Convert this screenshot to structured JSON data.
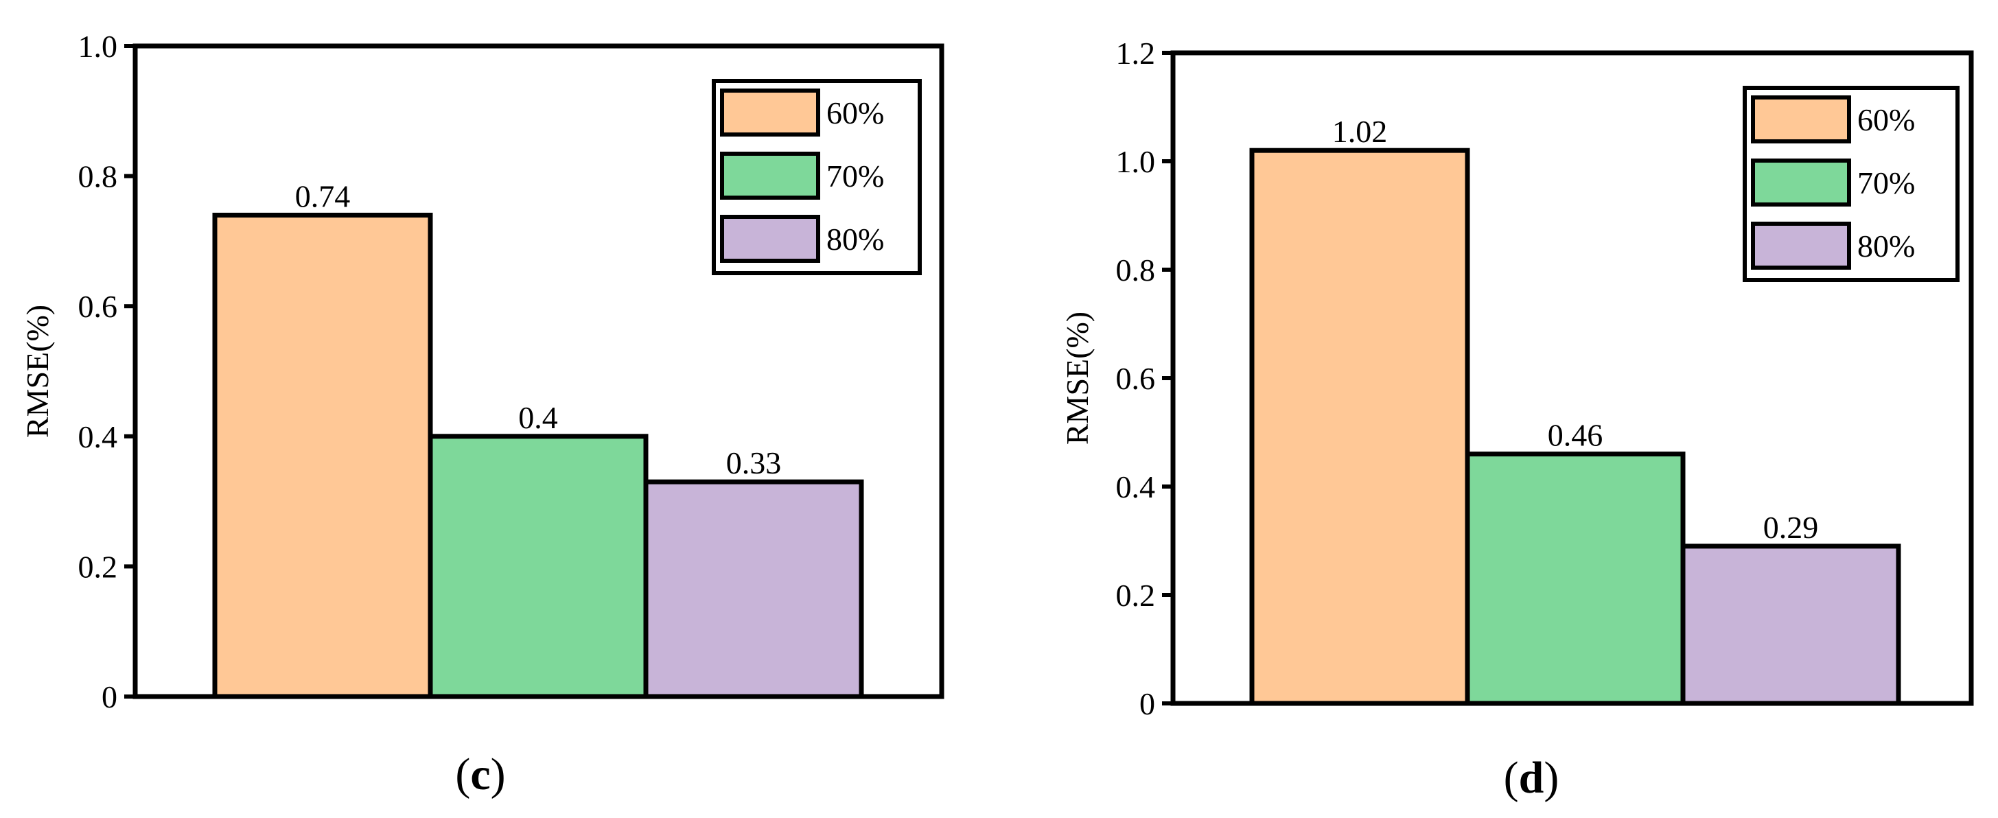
{
  "chart_data": [
    {
      "type": "bar",
      "panel_label": "c",
      "ylabel": "RMSE(%)",
      "ylim": [
        0,
        1.0
      ],
      "yticks": [
        "0",
        "0.2",
        "0.4",
        "0.6",
        "0.8",
        "1.0"
      ],
      "ytick_values": [
        0,
        0.2,
        0.4,
        0.6,
        0.8,
        1.0
      ],
      "series": [
        {
          "name": "60%",
          "values": [
            0.74
          ],
          "label": "0.74",
          "color": "#FFC896"
        },
        {
          "name": "70%",
          "values": [
            0.4
          ],
          "label": "0.4",
          "color": "#7ED89A"
        },
        {
          "name": "80%",
          "values": [
            0.33
          ],
          "label": "0.33",
          "color": "#C8B4D8"
        }
      ],
      "legend_position": "top-right",
      "grid": false
    },
    {
      "type": "bar",
      "panel_label": "d",
      "ylabel": "RMSE(%)",
      "ylim": [
        0,
        1.2
      ],
      "yticks": [
        "0",
        "0.2",
        "0.4",
        "0.6",
        "0.8",
        "1.0",
        "1.2"
      ],
      "ytick_values": [
        0,
        0.2,
        0.4,
        0.6,
        0.8,
        1.0,
        1.2
      ],
      "series": [
        {
          "name": "60%",
          "values": [
            1.02
          ],
          "label": "1.02",
          "color": "#FFC896"
        },
        {
          "name": "70%",
          "values": [
            0.46
          ],
          "label": "0.46",
          "color": "#7ED89A"
        },
        {
          "name": "80%",
          "values": [
            0.29
          ],
          "label": "0.29",
          "color": "#C8B4D8"
        }
      ],
      "legend_position": "top-right",
      "grid": false
    }
  ]
}
